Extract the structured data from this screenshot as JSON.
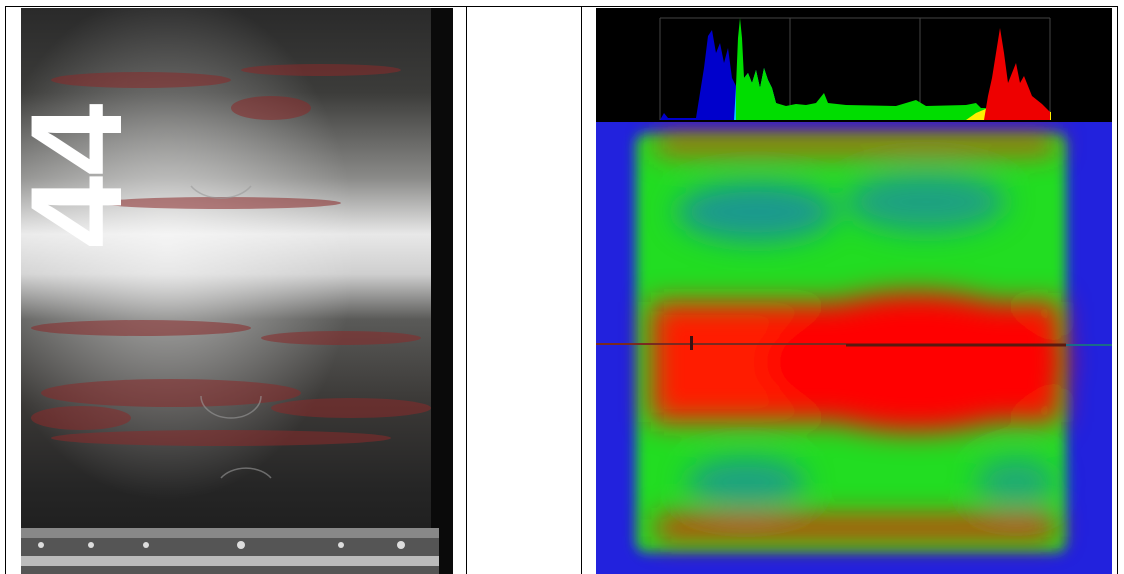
{
  "panels": {
    "photo": {
      "caption": "",
      "marking": "44"
    },
    "middle": {
      "text": ""
    },
    "thermal": {
      "histogram_colors": [
        "#0000cc",
        "#00c8ff",
        "#00dd00",
        "#ffee00",
        "#ee0000"
      ]
    }
  },
  "colors": {
    "heatmap_bg": "#2222dd",
    "hot": "#ff1a00",
    "warm": "#22dd22",
    "cool": "#1a88aa"
  }
}
